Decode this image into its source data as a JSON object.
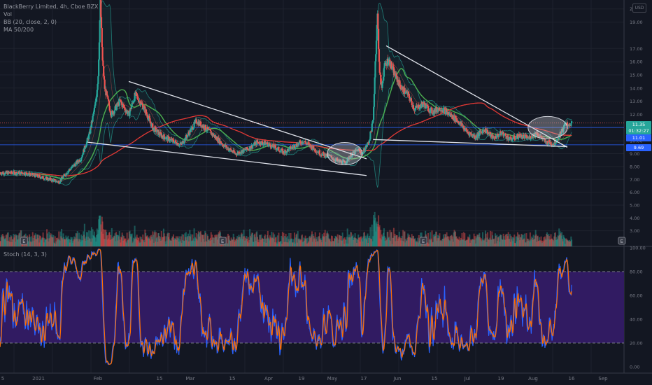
{
  "legend": {
    "title": "BlackBerry Limited, 4h, Cboe BZX",
    "vol": "Vol",
    "bb": "BB (20, close, 2, 0)",
    "ma": "MA 50/200",
    "stoch": "Stoch (14, 3, 3)"
  },
  "currency_button": "USD",
  "price_labels": [
    {
      "text": "11.35",
      "color": "#26a69a"
    },
    {
      "text": "01:32:27",
      "color": "#26a69a"
    },
    {
      "text": "11.01",
      "color": "#2962ff"
    },
    {
      "text": "9.69",
      "color": "#2962ff"
    }
  ],
  "earnings_marker": "E",
  "chart_data": {
    "type": "candlestick",
    "price_axis": {
      "range": [
        2.5,
        20.5
      ],
      "ticks": [
        "20.00",
        "19.00",
        "17.00",
        "16.00",
        "15.00",
        "14.00",
        "13.00",
        "12.00",
        "11.00",
        "10.00",
        "9.00",
        "8.00",
        "7.00",
        "6.00",
        "5.00",
        "4.00",
        "3.00"
      ]
    },
    "stoch_axis": {
      "range": [
        0,
        100
      ],
      "ticks": [
        "100.00",
        "80.00",
        "60.00",
        "40.00",
        "20.00",
        "0.00"
      ],
      "overbought": 80,
      "oversold": 20
    },
    "time_axis": [
      "5",
      "2021",
      "Feb",
      "15",
      "Mar",
      "15",
      "Apr",
      "19",
      "May",
      "17",
      "Jun",
      "15",
      "Jul",
      "19",
      "Aug",
      "16",
      "Sep",
      "16"
    ],
    "price_path": [
      [
        "2020-12-23",
        7.5
      ],
      [
        "2020-12-28",
        7.3
      ],
      [
        "2021-01-04",
        7.0
      ],
      [
        "2021-01-08",
        6.8
      ],
      [
        "2021-01-12",
        7.6
      ],
      [
        "2021-01-18",
        8.6
      ],
      [
        "2021-01-22",
        10.5
      ],
      [
        "2021-01-25",
        13.0
      ],
      [
        "2021-01-26",
        15.0
      ],
      [
        "2021-01-27",
        20.5
      ],
      [
        "2021-01-28",
        16.0
      ],
      [
        "2021-01-29",
        14.0
      ],
      [
        "2021-02-01",
        12.0
      ],
      [
        "2021-02-05",
        13.0
      ],
      [
        "2021-02-09",
        12.0
      ],
      [
        "2021-02-12",
        13.5
      ],
      [
        "2021-02-16",
        12.5
      ],
      [
        "2021-02-20",
        11.0
      ],
      [
        "2021-02-24",
        10.4
      ],
      [
        "2021-03-01",
        10.0
      ],
      [
        "2021-03-05",
        9.7
      ],
      [
        "2021-03-09",
        10.7
      ],
      [
        "2021-03-12",
        11.5
      ],
      [
        "2021-03-16",
        11.0
      ],
      [
        "2021-03-20",
        10.4
      ],
      [
        "2021-03-25",
        9.6
      ],
      [
        "2021-03-30",
        9.0
      ],
      [
        "2021-04-05",
        9.4
      ],
      [
        "2021-04-09",
        9.9
      ],
      [
        "2021-04-13",
        9.8
      ],
      [
        "2021-04-17",
        9.5
      ],
      [
        "2021-04-21",
        9.1
      ],
      [
        "2021-04-26",
        9.6
      ],
      [
        "2021-04-30",
        10.0
      ],
      [
        "2021-05-04",
        9.5
      ],
      [
        "2021-05-08",
        9.0
      ],
      [
        "2021-05-12",
        8.8
      ],
      [
        "2021-05-16",
        8.4
      ],
      [
        "2021-05-19",
        8.3
      ],
      [
        "2021-05-22",
        8.9
      ],
      [
        "2021-05-25",
        9.3
      ],
      [
        "2021-05-27",
        9.0
      ],
      [
        "2021-05-30",
        9.9
      ],
      [
        "2021-06-01",
        11.5
      ],
      [
        "2021-06-02",
        16.0
      ],
      [
        "2021-06-03",
        19.5
      ],
      [
        "2021-06-04",
        15.0
      ],
      [
        "2021-06-05",
        14.0
      ],
      [
        "2021-06-06",
        15.5
      ],
      [
        "2021-06-08",
        16.2
      ],
      [
        "2021-06-11",
        15.0
      ],
      [
        "2021-06-14",
        14.0
      ],
      [
        "2021-06-17",
        13.5
      ],
      [
        "2021-06-20",
        12.4
      ],
      [
        "2021-06-24",
        12.8
      ],
      [
        "2021-06-28",
        12.2
      ],
      [
        "2021-07-02",
        12.5
      ],
      [
        "2021-07-06",
        12.0
      ],
      [
        "2021-07-10",
        11.5
      ],
      [
        "2021-07-14",
        10.7
      ],
      [
        "2021-07-18",
        10.3
      ],
      [
        "2021-07-22",
        10.9
      ],
      [
        "2021-07-26",
        10.2
      ],
      [
        "2021-07-30",
        10.6
      ],
      [
        "2021-08-03",
        10.1
      ],
      [
        "2021-08-07",
        10.4
      ],
      [
        "2021-08-11",
        10.2
      ],
      [
        "2021-08-15",
        10.6
      ],
      [
        "2021-08-19",
        9.9
      ],
      [
        "2021-08-23",
        9.8
      ],
      [
        "2021-08-26",
        10.6
      ],
      [
        "2021-08-28",
        11.2
      ],
      [
        "2021-08-31",
        11.3
      ]
    ],
    "last_price": 11.35,
    "horizontal_levels": [
      11.35,
      11.01,
      9.69
    ],
    "trendlines": [
      {
        "from": [
          "2021-01-21",
          9.9
        ],
        "to": [
          "2021-05-29",
          7.3
        ]
      },
      {
        "from": [
          "2021-02-09",
          14.5
        ],
        "to": [
          "2021-05-29",
          8.6
        ]
      },
      {
        "from": [
          "2021-06-07",
          17.2
        ],
        "to": [
          "2021-08-29",
          9.5
        ]
      },
      {
        "from": [
          "2021-06-01",
          10.1
        ],
        "to": [
          "2021-08-29",
          9.55
        ]
      }
    ],
    "highlighted_regions": [
      {
        "center": [
          "2021-05-19",
          9.0
        ],
        "label": ""
      },
      {
        "center": [
          "2021-08-20",
          11.0
        ],
        "label": ""
      }
    ],
    "earnings_dates": [
      "2020-12-23",
      "2021-03-24",
      "2021-06-24",
      "2021-09-23"
    ]
  }
}
